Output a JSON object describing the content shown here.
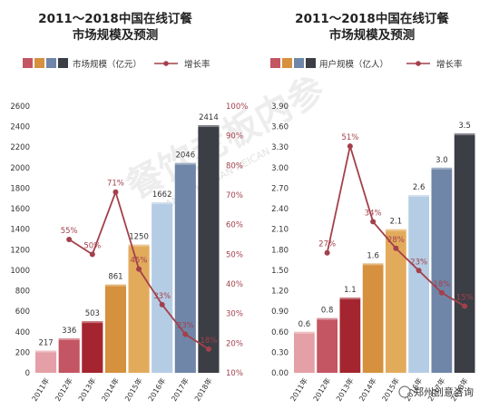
{
  "chart_data": [
    {
      "type": "bar",
      "title_line1": "2011～2018中国在线订餐",
      "title_line2": "市场规模及预测",
      "legend_bar": "市场规模（亿元）",
      "legend_line": "增长率",
      "categories": [
        "2011年",
        "2012年",
        "2013年",
        "2014年",
        "2015年",
        "2016年",
        "2017年",
        "2018年"
      ],
      "values": [
        217,
        336,
        503,
        861,
        1250,
        1662,
        2046,
        2414
      ],
      "value_labels": [
        "217",
        "336",
        "503",
        "861",
        "1250",
        "1662",
        "2046",
        "2414"
      ],
      "growth": [
        null,
        55,
        50,
        71,
        45,
        33,
        23,
        18
      ],
      "growth_labels": [
        "",
        "55%",
        "50%",
        "71%",
        "45%",
        "33%",
        "23%",
        "18%"
      ],
      "bar_colors": [
        "#e4a0a6",
        "#c45562",
        "#a4252f",
        "#d5913d",
        "#e2ab5c",
        "#b5cde4",
        "#6f86a8",
        "#3b3e45"
      ],
      "line_color": "#a3404b",
      "yticks": [
        "0",
        "200",
        "400",
        "600",
        "800",
        "1000",
        "1200",
        "1400",
        "1600",
        "1800",
        "2000",
        "2200",
        "2400",
        "2600"
      ],
      "ylim": [
        0,
        2600
      ],
      "pticks": [
        "10%",
        "20%",
        "30%",
        "40%",
        "50%",
        "60%",
        "70%",
        "80%",
        "90%",
        "100%"
      ],
      "plim": [
        10,
        100
      ]
    },
    {
      "type": "bar",
      "title_line1": "2011～2018中国在线订餐",
      "title_line2": "市场规模及预测",
      "legend_bar": "用户规模（亿人）",
      "legend_line": "增长率",
      "categories": [
        "2011年",
        "2012年",
        "2013年",
        "2014年",
        "2015年",
        "2016年",
        "2017年",
        "2018年"
      ],
      "values": [
        0.6,
        0.8,
        1.1,
        1.6,
        2.1,
        2.6,
        3.0,
        3.5
      ],
      "value_labels": [
        "0.6",
        "0.8",
        "1.1",
        "1.6",
        "2.1",
        "2.6",
        "3.0",
        "3.5"
      ],
      "growth": [
        null,
        27,
        51,
        34,
        28,
        23,
        18,
        15
      ],
      "growth_labels": [
        "",
        "27%",
        "51%",
        "34%",
        "28%",
        "23%",
        "18%",
        "15%"
      ],
      "bar_colors": [
        "#e4a0a6",
        "#c45562",
        "#a4252f",
        "#d5913d",
        "#e2ab5c",
        "#b5cde4",
        "#6f86a8",
        "#3b3e45"
      ],
      "line_color": "#a3404b",
      "yticks": [
        "0.00",
        "0.30",
        "0.60",
        "0.90",
        "1.20",
        "1.50",
        "1.80",
        "2.10",
        "2.40",
        "2.70",
        "3.00",
        "3.30",
        "3.60",
        "3.90"
      ],
      "ylim": [
        0,
        3.9
      ],
      "plim": [
        0,
        60
      ]
    }
  ],
  "legend_swatches": [
    "#c45562",
    "#d5913d",
    "#6f86a8",
    "#3b3e45"
  ],
  "watermark": "餐饮老板内参",
  "watermark_sub": "CANYIN LAOBAN NEICAN",
  "footer": "郑州创意咨询"
}
